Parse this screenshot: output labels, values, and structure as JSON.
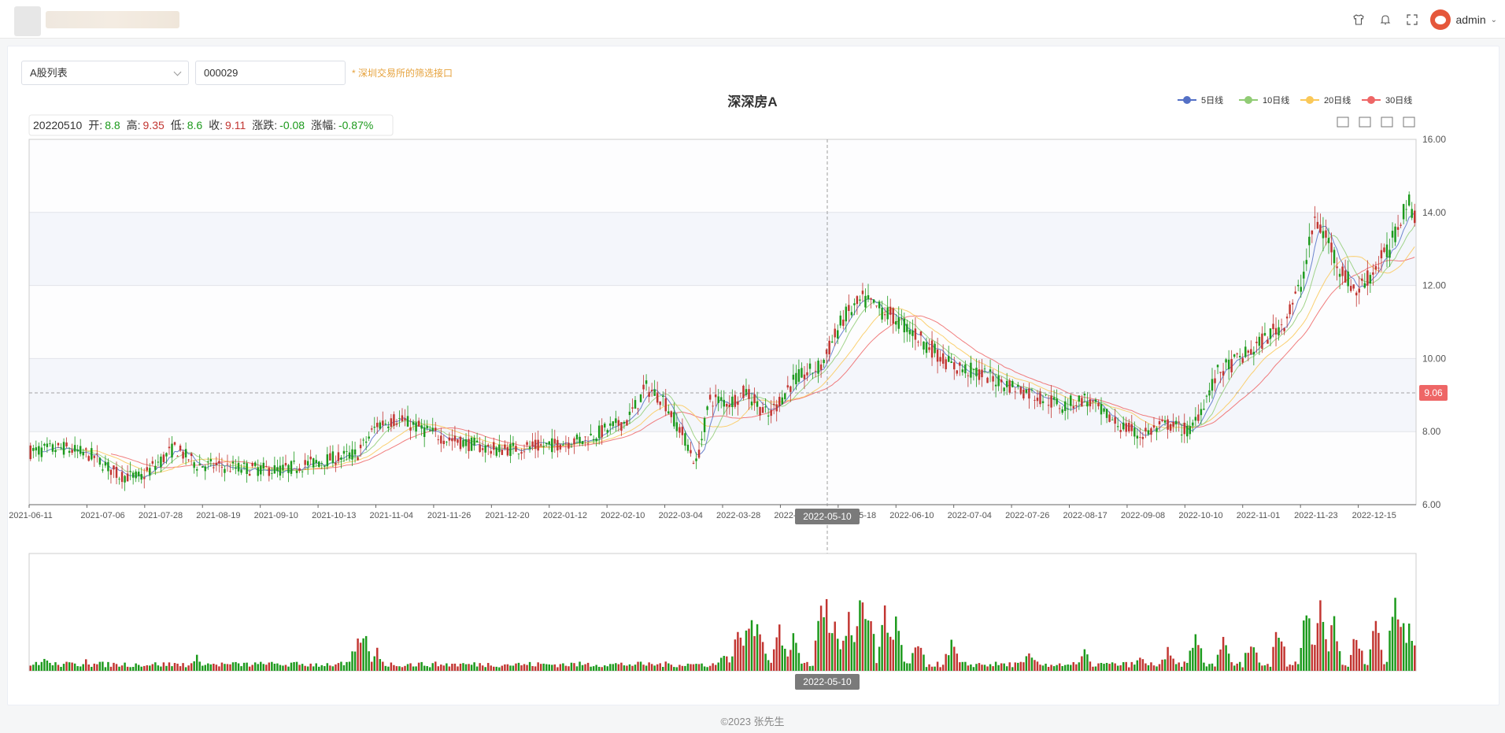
{
  "header": {
    "username": "admin",
    "icons": [
      "shirt-icon",
      "bell-icon",
      "fullscreen-icon",
      "avatar-icon",
      "chevron-down-icon"
    ]
  },
  "filters": {
    "list_select": "A股列表",
    "stock_code": "000029",
    "hint": "* 深圳交易所的筛选接口"
  },
  "footer": {
    "copyright": "©2023 张先生"
  },
  "colors": {
    "up": "#c23531",
    "down": "#1c9a1c",
    "ma5": "#5470c6",
    "ma10": "#91cc75",
    "ma20": "#fac858",
    "ma30": "#ee6666",
    "price_tag": "#ee6666"
  },
  "chart_data": {
    "type": "candlestick",
    "title": "深深房A",
    "legend": [
      "5日线",
      "10日线",
      "20日线",
      "30日线"
    ],
    "legend_position": "top-right",
    "toolbox_icons": [
      "zoom-area-icon",
      "zoom-reset-icon",
      "restore-icon",
      "save-icon"
    ],
    "ylim": [
      6,
      16
    ],
    "yticks": [
      "16.00",
      "14.00",
      "12.00",
      "10.00",
      "8.00",
      "6.00"
    ],
    "xticks": [
      "2021-06-11",
      "2021-07-06",
      "2021-07-28",
      "2021-08-19",
      "2021-09-10",
      "2021-10-13",
      "2021-11-04",
      "2021-11-26",
      "2021-12-20",
      "2022-01-12",
      "2022-02-10",
      "2022-03-04",
      "2022-03-28",
      "2022-04-20",
      "2022-05-18",
      "2022-06-10",
      "2022-07-04",
      "2022-07-26",
      "2022-08-17",
      "2022-09-08",
      "2022-10-10",
      "2022-11-01",
      "2022-11-23",
      "2022-12-15"
    ],
    "cursor_label": "2022-05-10",
    "cursor_price": "9.06",
    "cursor_price_value": 9.06,
    "tooltip": {
      "date": "20220510",
      "open_label": "开:",
      "open": "8.8",
      "high_label": "高:",
      "high": "9.35",
      "low_label": "低:",
      "low": "8.6",
      "close_label": "收:",
      "close": "9.11",
      "change_label": "涨跌:",
      "change": "-0.08",
      "pct_label": "涨幅:",
      "pct": "-0.87%"
    },
    "anchors": [
      [
        0,
        7.45
      ],
      [
        12,
        7.55
      ],
      [
        22,
        7.35
      ],
      [
        32,
        6.8
      ],
      [
        40,
        6.75
      ],
      [
        52,
        7.55
      ],
      [
        60,
        7.1
      ],
      [
        75,
        7.0
      ],
      [
        90,
        6.95
      ],
      [
        105,
        7.2
      ],
      [
        118,
        7.4
      ],
      [
        125,
        8.2
      ],
      [
        132,
        8.35
      ],
      [
        150,
        7.8
      ],
      [
        168,
        7.5
      ],
      [
        185,
        7.6
      ],
      [
        200,
        7.8
      ],
      [
        215,
        8.3
      ],
      [
        222,
        9.2
      ],
      [
        228,
        8.9
      ],
      [
        236,
        7.8
      ],
      [
        240,
        7.1
      ],
      [
        245,
        8.9
      ],
      [
        252,
        8.8
      ],
      [
        258,
        9.1
      ],
      [
        266,
        8.4
      ],
      [
        275,
        9.4
      ],
      [
        285,
        9.8
      ],
      [
        293,
        11.1
      ],
      [
        300,
        11.6
      ],
      [
        310,
        11.2
      ],
      [
        320,
        10.6
      ],
      [
        332,
        9.8
      ],
      [
        342,
        9.6
      ],
      [
        352,
        9.3
      ],
      [
        362,
        9.0
      ],
      [
        372,
        8.7
      ],
      [
        380,
        8.9
      ],
      [
        392,
        8.2
      ],
      [
        400,
        7.9
      ],
      [
        410,
        8.2
      ],
      [
        418,
        8.0
      ],
      [
        428,
        9.6
      ],
      [
        440,
        10.2
      ],
      [
        452,
        11.0
      ],
      [
        458,
        12.0
      ],
      [
        463,
        13.8
      ],
      [
        468,
        13.2
      ],
      [
        472,
        12.5
      ],
      [
        478,
        11.8
      ],
      [
        490,
        13.0
      ],
      [
        496,
        14.3
      ],
      [
        500,
        13.9
      ]
    ],
    "volumes": {
      "ylim": [
        0,
        100
      ],
      "spikes": [
        [
          5,
          12
        ],
        [
          20,
          10
        ],
        [
          45,
          8
        ],
        [
          60,
          14
        ],
        [
          85,
          8
        ],
        [
          118,
          35
        ],
        [
          120,
          45
        ],
        [
          125,
          22
        ],
        [
          250,
          20
        ],
        [
          255,
          40
        ],
        [
          259,
          60
        ],
        [
          262,
          55
        ],
        [
          264,
          30
        ],
        [
          270,
          45
        ],
        [
          275,
          38
        ],
        [
          285,
          62
        ],
        [
          287,
          70
        ],
        [
          290,
          48
        ],
        [
          295,
          60
        ],
        [
          300,
          88
        ],
        [
          302,
          70
        ],
        [
          308,
          60
        ],
        [
          312,
          48
        ],
        [
          320,
          35
        ],
        [
          332,
          30
        ],
        [
          360,
          22
        ],
        [
          380,
          20
        ],
        [
          400,
          14
        ],
        [
          410,
          22
        ],
        [
          420,
          40
        ],
        [
          430,
          30
        ],
        [
          440,
          34
        ],
        [
          450,
          45
        ],
        [
          460,
          62
        ],
        [
          465,
          70
        ],
        [
          470,
          55
        ],
        [
          478,
          42
        ],
        [
          485,
          50
        ],
        [
          492,
          75
        ],
        [
          494,
          60
        ],
        [
          497,
          45
        ],
        [
          500,
          30
        ]
      ]
    },
    "count": 500
  }
}
